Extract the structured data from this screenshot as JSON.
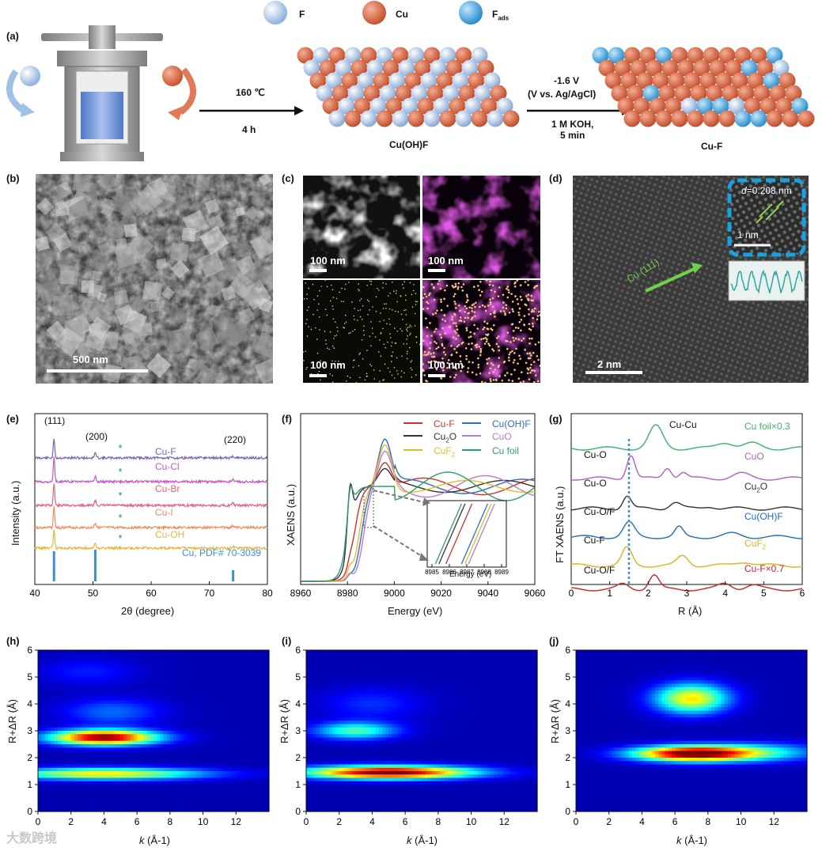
{
  "panel_labels": {
    "a": "(a)",
    "b": "(b)",
    "c": "(c)",
    "d": "(d)",
    "e": "(e)",
    "f": "(f)",
    "g": "(g)",
    "h": "(h)",
    "i": "(i)",
    "j": "(j)"
  },
  "legend_top": {
    "items": [
      {
        "label": "F",
        "sub": "",
        "color": "#a8c6e8"
      },
      {
        "label": "Cu",
        "sub": "",
        "color": "#d9684a"
      },
      {
        "label": "F",
        "sub": "ads",
        "color": "#45a7dd"
      }
    ]
  },
  "panel_a": {
    "step1_top": "160 ℃",
    "step1_bottom": "4 h",
    "step2_top": "-1.6 V",
    "step2_mid": "(V vs. Ag/AgCl)",
    "step2_b1": "1 M KOH,",
    "step2_b2": "5 min",
    "slab1_label": "Cu(OH)F",
    "slab2_label": "Cu-F"
  },
  "panel_b": {
    "scale": "500 nm"
  },
  "panel_c": {
    "scales": [
      "100 nm",
      "100 nm",
      "100 nm",
      "100 nm"
    ]
  },
  "panel_d": {
    "scale": "2 nm",
    "inset_d": "d",
    "inset_eq": "=0.208 nm",
    "inset_scale": "1 nm",
    "plane": "Cu (111)"
  },
  "panel_e": {
    "ylabel": "Intensity (a.u.)",
    "xlabel": "2θ (degree)",
    "peaks": [
      "(111)",
      "(200)",
      "(220)"
    ],
    "ref_label": "Cu, PDF# 70-3039",
    "series": [
      {
        "name": "Cu-F",
        "color": "#7b5fbf"
      },
      {
        "name": "Cu-Cl",
        "color": "#c457c8"
      },
      {
        "name": "Cu-Br",
        "color": "#e8607e"
      },
      {
        "name": "Cu-I",
        "color": "#f08a5d"
      },
      {
        "name": "Cu-OH",
        "color": "#e8b53a"
      }
    ]
  },
  "panel_f": {
    "ylabel": "XAENS (a.u.)",
    "xlabel": "Energy (eV)",
    "inset_xlabel": "Energy (eV)",
    "series": [
      {
        "name": "Cu-F",
        "color": "#d32f2f"
      },
      {
        "name": "Cu(OH)F",
        "color": "#2d6fbf"
      },
      {
        "name": "Cu2O",
        "color": "#333333"
      },
      {
        "name": "CuO",
        "color": "#b57bd6"
      },
      {
        "name": "CuF2",
        "color": "#e6b82e"
      },
      {
        "name": "Cu foil",
        "color": "#2e9d6b"
      }
    ]
  },
  "panel_g": {
    "ylabel": "FT XAENS (a.u.)",
    "xlabel": "R (Å)",
    "series": [
      {
        "name": "Cu foil×0.3",
        "color": "#3ab36b",
        "path": "Cu-Cu"
      },
      {
        "name": "CuO",
        "color": "#b15fc9",
        "path": "Cu-O"
      },
      {
        "name": "Cu2O",
        "color": "#333333",
        "path": "Cu-O"
      },
      {
        "name": "Cu(OH)F",
        "color": "#1f6cbf",
        "path": "Cu-O/F"
      },
      {
        "name": "CuF2",
        "color": "#e0b020",
        "path": "Cu-F"
      },
      {
        "name": "Cu-F×0.7",
        "color": "#d32020",
        "path": "Cu-O/F"
      }
    ]
  },
  "wavelet": {
    "ylabel": "R+ΔR (Å)",
    "xlabel_k": "k",
    "xlabel_unit": " (Å-1)"
  },
  "watermark": "大数跨境",
  "chart_data": [
    {
      "type": "line",
      "title": "",
      "xlabel": "2θ (degree)",
      "ylabel": "Intensity (a.u.)",
      "xlim": [
        40,
        80
      ],
      "xticks": [
        40,
        50,
        60,
        70,
        80
      ],
      "peak_positions": [
        43.3,
        50.4,
        74.1
      ],
      "reference_lines": [
        43.3,
        50.4,
        74.1
      ]
    },
    {
      "type": "line",
      "title": "",
      "xlabel": "Energy (eV)",
      "ylabel": "XAENS (a.u.)",
      "xlim": [
        8960,
        9060
      ],
      "xticks": [
        8960,
        8980,
        9000,
        9020,
        9040,
        9060
      ],
      "inset": {
        "xlim": [
          8985,
          8989
        ],
        "xticks": [
          8985,
          8986,
          8987,
          8988,
          8989
        ]
      }
    },
    {
      "type": "line",
      "title": "",
      "xlabel": "R (Å)",
      "ylabel": "FT XAENS (a.u.)",
      "xlim": [
        0,
        6
      ],
      "xticks": [
        0,
        1,
        2,
        3,
        4,
        5,
        6
      ],
      "dashed_line_at": 1.5
    },
    {
      "type": "heatmap",
      "xlabel": "k (Å-1)",
      "ylabel": "R+ΔR (Å)",
      "xlim": [
        0,
        14
      ],
      "ylim": [
        0,
        6
      ],
      "xticks": [
        0,
        2,
        4,
        6,
        8,
        10,
        12
      ],
      "yticks": [
        0,
        1,
        2,
        3,
        4,
        5,
        6
      ],
      "hotspots": [
        {
          "k": 4,
          "R": 2.75,
          "level": "max"
        },
        {
          "k": 4,
          "R": 1.4,
          "level": "medium"
        }
      ]
    },
    {
      "type": "heatmap",
      "xlabel": "k (Å-1)",
      "ylabel": "R+ΔR (Å)",
      "xlim": [
        0,
        14
      ],
      "ylim": [
        0,
        6
      ],
      "xticks": [
        0,
        2,
        4,
        6,
        8,
        10,
        12
      ],
      "yticks": [
        0,
        1,
        2,
        3,
        4,
        5,
        6
      ],
      "hotspots": [
        {
          "k": 5,
          "R": 1.45,
          "level": "max"
        },
        {
          "k": 3,
          "R": 3.0,
          "level": "low"
        }
      ]
    },
    {
      "type": "heatmap",
      "xlabel": "k (Å-1)",
      "ylabel": "R+ΔR (Å)",
      "xlim": [
        0,
        14
      ],
      "ylim": [
        0,
        6
      ],
      "xticks": [
        0,
        2,
        4,
        6,
        8,
        10,
        12
      ],
      "yticks": [
        0,
        1,
        2,
        3,
        4,
        5,
        6
      ],
      "hotspots": [
        {
          "k": 7,
          "R": 2.15,
          "level": "max"
        },
        {
          "k": 7,
          "R": 4.2,
          "level": "medium"
        }
      ]
    }
  ]
}
